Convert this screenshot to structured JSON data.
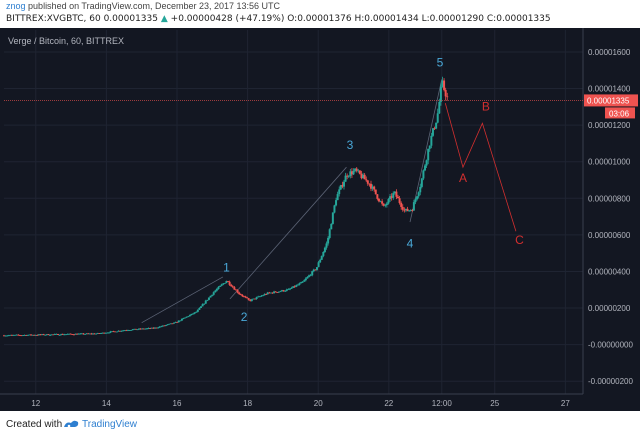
{
  "header": {
    "username": "znog",
    "published_text": "published on TradingView.com, December 23, 2017 13:56 UTC",
    "symbol_line": "BITTREX:XVGBTC, 60",
    "last_price": "0.00001335",
    "change_arrow": "▲",
    "change_text": "+0.00000428 (+47.19%)",
    "ohlc": {
      "o_label": "O:",
      "o": "0.00001376",
      "h_label": "H:",
      "h": "0.00001434",
      "l_label": "L:",
      "l": "0.00001290",
      "c_label": "C:",
      "c": "0.00001335"
    }
  },
  "chart_data": {
    "type": "candlestick",
    "title": "Verge / Bitcoin, 60, BITTREX",
    "x_tick_labels": [
      "12",
      "14",
      "16",
      "18",
      "20",
      "22",
      "12:00",
      "25",
      "27"
    ],
    "x_ticks_day": [
      12,
      14,
      16,
      18,
      20,
      22,
      23.5,
      25,
      27
    ],
    "y_tick_labels": [
      "0.00001600",
      "0.00001400",
      "0.00001200",
      "0.00001000",
      "0.00000800",
      "0.00000600",
      "0.00000400",
      "0.00000200",
      "-0.00000000",
      "-0.00000200"
    ],
    "y_ticks": [
      1.6e-05,
      1.4e-05,
      1.2e-05,
      1e-05,
      8e-06,
      6e-06,
      4e-06,
      2e-06,
      0,
      -2e-06
    ],
    "y_range": [
      -2.7e-06,
      1.72e-05
    ],
    "x_range_day": [
      11.1,
      27.5
    ],
    "price_tag": "0.00001335",
    "countdown_tag": "03:06",
    "price_line_value": 1.335e-05,
    "colors": {
      "background": "#131722",
      "up": "#26a69a",
      "down": "#ef5350",
      "wave_count": "#4aa8d8",
      "correction": "#d32f2f",
      "grid": "#1f2432",
      "axis_text": "#b2b5be"
    },
    "price_path": [
      [
        11.1,
        5e-07
      ],
      [
        12.5,
        5.5e-07
      ],
      [
        13.8,
        6e-07
      ],
      [
        14.6,
        8e-07
      ],
      [
        15.4,
        9e-07
      ],
      [
        16.0,
        1.2e-06
      ],
      [
        16.6,
        1.8e-06
      ],
      [
        17.1,
        2.9e-06
      ],
      [
        17.45,
        3.5e-06
      ],
      [
        17.8,
        2.8e-06
      ],
      [
        18.1,
        2.4e-06
      ],
      [
        18.6,
        2.8e-06
      ],
      [
        19.2,
        3e-06
      ],
      [
        19.6,
        3.4e-06
      ],
      [
        20.0,
        4.2e-06
      ],
      [
        20.3,
        5.6e-06
      ],
      [
        20.55,
        8e-06
      ],
      [
        20.85,
        9.3e-06
      ],
      [
        21.1,
        9.5e-06
      ],
      [
        21.5,
        8.8e-06
      ],
      [
        21.9,
        7.5e-06
      ],
      [
        22.2,
        8.3e-06
      ],
      [
        22.5,
        7.3e-06
      ],
      [
        22.7,
        7.4e-06
      ],
      [
        22.95,
        8.8e-06
      ],
      [
        23.2,
        1.1e-05
      ],
      [
        23.42,
        1.25e-05
      ],
      [
        23.55,
        1.43e-05
      ],
      [
        23.7,
        1.35e-05
      ]
    ],
    "wave_labels": [
      {
        "text": "1",
        "x": 17.4,
        "y": 4e-06
      },
      {
        "text": "2",
        "x": 17.9,
        "y": 1.3e-06
      },
      {
        "text": "3",
        "x": 20.9,
        "y": 1.07e-05
      },
      {
        "text": "4",
        "x": 22.6,
        "y": 5.3e-06
      },
      {
        "text": "5",
        "x": 23.45,
        "y": 1.52e-05
      }
    ],
    "correction_labels": [
      {
        "text": "A",
        "x": 24.1,
        "y": 8.9e-06
      },
      {
        "text": "B",
        "x": 24.75,
        "y": 1.28e-05
      },
      {
        "text": "C",
        "x": 25.7,
        "y": 5.5e-06
      }
    ],
    "correction_path": [
      [
        23.6,
        1.32e-05
      ],
      [
        24.1,
        9.7e-06
      ],
      [
        24.65,
        1.21e-05
      ],
      [
        25.6,
        6.2e-06
      ]
    ],
    "wave_guides": [
      [
        [
          15.0,
          1.2e-06
        ],
        [
          17.3,
          3.7e-06
        ]
      ],
      [
        [
          17.5,
          2.5e-06
        ],
        [
          20.8,
          9.7e-06
        ]
      ],
      [
        [
          22.6,
          6.7e-06
        ],
        [
          23.5,
          1.45e-05
        ]
      ]
    ]
  },
  "footer": {
    "created_with": "Created with",
    "brand": "TradingView"
  }
}
